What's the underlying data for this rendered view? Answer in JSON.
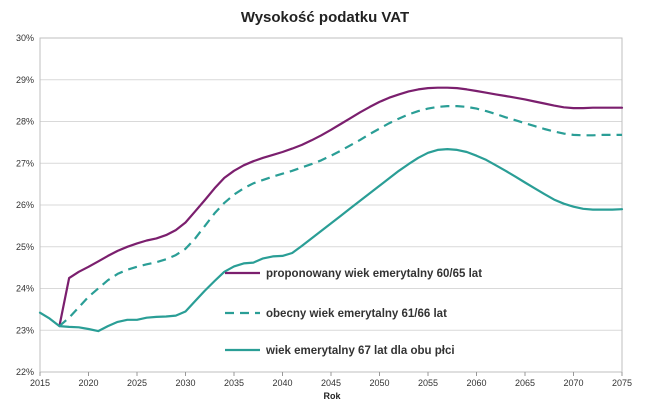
{
  "chart_data": {
    "type": "line",
    "title": "Wysokość podatku VAT",
    "xlabel": "Rok",
    "ylabel": "",
    "xlim": [
      2015,
      2075
    ],
    "ylim": [
      22,
      30
    ],
    "x_ticks": [
      2015,
      2020,
      2025,
      2030,
      2035,
      2040,
      2045,
      2050,
      2055,
      2060,
      2065,
      2070,
      2075
    ],
    "y_ticks": [
      22,
      23,
      24,
      25,
      26,
      27,
      28,
      29,
      30
    ],
    "y_tick_labels": [
      "22%",
      "23%",
      "24%",
      "25%",
      "26%",
      "27%",
      "28%",
      "29%",
      "30%"
    ],
    "grid": "horizontal",
    "legend_position": "center-inside",
    "series": [
      {
        "name": "proponowany wiek emerytalny 60/65 lat",
        "color": "#7b1f6e",
        "dash": "solid",
        "x": [
          2017,
          2018,
          2019,
          2020,
          2021,
          2022,
          2023,
          2024,
          2025,
          2026,
          2027,
          2028,
          2029,
          2030,
          2031,
          2032,
          2033,
          2034,
          2035,
          2036,
          2037,
          2038,
          2039,
          2040,
          2041,
          2042,
          2043,
          2044,
          2045,
          2046,
          2047,
          2048,
          2049,
          2050,
          2051,
          2052,
          2053,
          2054,
          2055,
          2056,
          2057,
          2058,
          2059,
          2060,
          2061,
          2062,
          2063,
          2064,
          2065,
          2066,
          2067,
          2068,
          2069,
          2070,
          2071,
          2072,
          2073,
          2074,
          2075
        ],
        "values": [
          23.1,
          24.25,
          24.4,
          24.52,
          24.65,
          24.78,
          24.9,
          25.0,
          25.08,
          25.15,
          25.2,
          25.28,
          25.4,
          25.58,
          25.85,
          26.12,
          26.4,
          26.65,
          26.82,
          26.95,
          27.05,
          27.13,
          27.2,
          27.27,
          27.35,
          27.44,
          27.55,
          27.67,
          27.8,
          27.94,
          28.08,
          28.22,
          28.35,
          28.47,
          28.57,
          28.65,
          28.72,
          28.77,
          28.8,
          28.81,
          28.81,
          28.8,
          28.77,
          28.73,
          28.69,
          28.65,
          28.61,
          28.57,
          28.53,
          28.48,
          28.43,
          28.38,
          28.34,
          28.32,
          28.32,
          28.33,
          28.33,
          28.33,
          28.33
        ]
      },
      {
        "name": "obecny wiek emerytalny 61/66 lat",
        "color": "#2a9e96",
        "dash": "dashed",
        "x": [
          2017,
          2018,
          2019,
          2020,
          2021,
          2022,
          2023,
          2024,
          2025,
          2026,
          2027,
          2028,
          2029,
          2030,
          2031,
          2032,
          2033,
          2034,
          2035,
          2036,
          2037,
          2038,
          2039,
          2040,
          2041,
          2042,
          2043,
          2044,
          2045,
          2046,
          2047,
          2048,
          2049,
          2050,
          2051,
          2052,
          2053,
          2054,
          2055,
          2056,
          2057,
          2058,
          2059,
          2060,
          2061,
          2062,
          2063,
          2064,
          2065,
          2066,
          2067,
          2068,
          2069,
          2070,
          2071,
          2072,
          2073,
          2074,
          2075
        ],
        "values": [
          23.1,
          23.3,
          23.55,
          23.8,
          24.0,
          24.2,
          24.35,
          24.45,
          24.52,
          24.58,
          24.63,
          24.7,
          24.8,
          24.95,
          25.2,
          25.5,
          25.8,
          26.05,
          26.25,
          26.4,
          26.52,
          26.6,
          26.68,
          26.75,
          26.82,
          26.9,
          26.98,
          27.07,
          27.18,
          27.3,
          27.43,
          27.56,
          27.7,
          27.83,
          27.96,
          28.07,
          28.17,
          28.25,
          28.31,
          28.35,
          28.37,
          28.37,
          28.35,
          28.31,
          28.25,
          28.18,
          28.1,
          28.03,
          27.96,
          27.89,
          27.82,
          27.76,
          27.71,
          27.68,
          27.67,
          27.67,
          27.68,
          27.68,
          27.68
        ]
      },
      {
        "name": "wiek emerytalny 67 lat dla obu płci",
        "color": "#2a9e96",
        "dash": "solid",
        "x": [
          2015,
          2016,
          2017,
          2018,
          2019,
          2020,
          2021,
          2022,
          2023,
          2024,
          2025,
          2026,
          2027,
          2028,
          2029,
          2030,
          2031,
          2032,
          2033,
          2034,
          2035,
          2036,
          2037,
          2038,
          2039,
          2040,
          2041,
          2042,
          2043,
          2044,
          2045,
          2046,
          2047,
          2048,
          2049,
          2050,
          2051,
          2052,
          2053,
          2054,
          2055,
          2056,
          2057,
          2058,
          2059,
          2060,
          2061,
          2062,
          2063,
          2064,
          2065,
          2066,
          2067,
          2068,
          2069,
          2070,
          2071,
          2072,
          2073,
          2074,
          2075
        ],
        "values": [
          23.42,
          23.28,
          23.1,
          23.08,
          23.07,
          23.03,
          22.98,
          23.1,
          23.2,
          23.25,
          23.25,
          23.3,
          23.32,
          23.33,
          23.35,
          23.45,
          23.7,
          23.95,
          24.18,
          24.4,
          24.53,
          24.6,
          24.62,
          24.72,
          24.77,
          24.78,
          24.85,
          25.02,
          25.2,
          25.38,
          25.56,
          25.74,
          25.92,
          26.1,
          26.28,
          26.46,
          26.64,
          26.82,
          26.98,
          27.13,
          27.25,
          27.32,
          27.34,
          27.32,
          27.27,
          27.18,
          27.08,
          26.95,
          26.82,
          26.68,
          26.54,
          26.4,
          26.26,
          26.13,
          26.03,
          25.96,
          25.91,
          25.89,
          25.89,
          25.89,
          25.9
        ]
      }
    ]
  }
}
